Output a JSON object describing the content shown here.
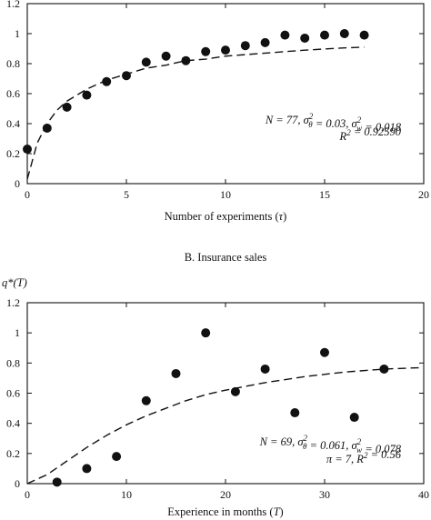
{
  "charts": [
    {
      "id": "A",
      "type": "scatter",
      "panel_title": "",
      "ylabel": "",
      "xlabel": "Number of experiments (τ)",
      "xlim": [
        0,
        20
      ],
      "ylim": [
        0,
        1.2
      ],
      "xticks": [
        0,
        5,
        10,
        15,
        20
      ],
      "yticks": [
        0,
        0.2,
        0.4,
        0.6,
        0.8,
        1,
        1.2
      ],
      "ytick_labels_visible": [
        "0",
        "0.2",
        "0.4",
        "0.6",
        "0.8",
        "1",
        "1.2"
      ],
      "stats": [
        "N = 77, σ²θ = 0.03, σ²w = 0.018",
        "R² = 0.92590"
      ],
      "points": {
        "x": [
          0,
          1,
          2,
          3,
          4,
          5,
          6,
          7,
          8,
          9,
          10,
          11,
          12,
          13,
          14,
          15,
          16,
          17
        ],
        "y": [
          0.23,
          0.37,
          0.51,
          0.59,
          0.68,
          0.72,
          0.81,
          0.85,
          0.82,
          0.88,
          0.89,
          0.92,
          0.94,
          0.99,
          0.97,
          0.99,
          1.0,
          0.99
        ]
      },
      "fit_curve": {
        "style": "dashed",
        "x": [
          0,
          0.5,
          1,
          1.5,
          2,
          3,
          4,
          5,
          6,
          7,
          8,
          9,
          10,
          12,
          14,
          16,
          17
        ],
        "y": [
          0.03,
          0.27,
          0.4,
          0.49,
          0.55,
          0.63,
          0.69,
          0.73,
          0.77,
          0.79,
          0.82,
          0.83,
          0.85,
          0.87,
          0.89,
          0.905,
          0.91
        ]
      }
    },
    {
      "id": "B",
      "type": "scatter",
      "panel_title": "B. Insurance sales",
      "ylabel": "q*(T)",
      "xlabel": "Experience in months (T)",
      "xlim": [
        0,
        40
      ],
      "ylim": [
        0,
        1.2
      ],
      "xticks": [
        0,
        10,
        20,
        30,
        40
      ],
      "yticks": [
        0,
        0.2,
        0.4,
        0.6,
        0.8,
        1,
        1.2
      ],
      "ytick_labels_visible": [
        "0",
        "0.2",
        "0.4",
        "0.6",
        "0.8",
        "1",
        "1.2"
      ],
      "stats": [
        "N = 69, σ²θ = 0.061, σ²w = 0.078",
        "π = 7, R² = 0.56"
      ],
      "points": {
        "x": [
          3,
          6,
          9,
          12,
          15,
          18,
          21,
          24,
          27,
          30,
          33,
          36
        ],
        "y": [
          0.01,
          0.1,
          0.18,
          0.55,
          0.73,
          1.0,
          0.61,
          0.76,
          0.47,
          0.87,
          0.44,
          0.76
        ]
      },
      "fit_curve": {
        "style": "dashed",
        "x": [
          0,
          2,
          4,
          6,
          8,
          10,
          12,
          14,
          16,
          18,
          20,
          24,
          28,
          32,
          36,
          40
        ],
        "y": [
          0.0,
          0.06,
          0.15,
          0.24,
          0.32,
          0.39,
          0.45,
          0.5,
          0.55,
          0.59,
          0.62,
          0.67,
          0.71,
          0.74,
          0.76,
          0.77
        ]
      }
    }
  ]
}
